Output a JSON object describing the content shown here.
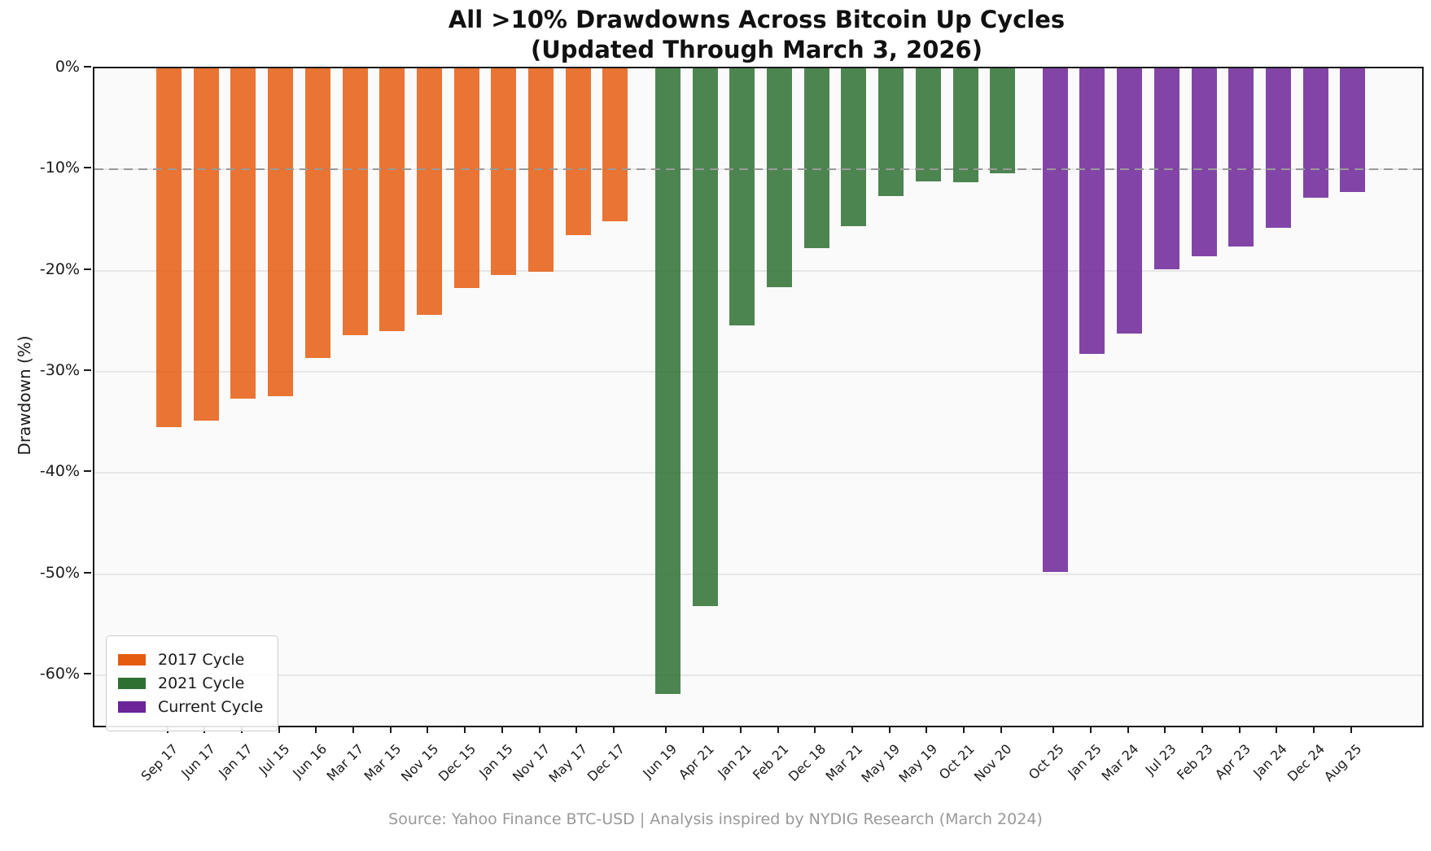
{
  "title": {
    "line1": "All >10% Drawdowns Across Bitcoin Up Cycles",
    "line2": "(Updated Through March 3, 2026)"
  },
  "source": "Source: Yahoo Finance BTC-USD | Analysis inspired by NYDIG Research (March 2024)",
  "chart_data": {
    "type": "bar",
    "title": "All >10% Drawdowns Across Bitcoin Up Cycles (Updated Through March 3, 2026)",
    "xlabel": "",
    "ylabel": "Drawdown (%)",
    "ylim": [
      -65,
      0
    ],
    "yticks": [
      "0%",
      "-10%",
      "-20%",
      "-30%",
      "-40%",
      "-50%",
      "-60%"
    ],
    "ytick_values": [
      0,
      -10,
      -20,
      -30,
      -40,
      -50,
      -60
    ],
    "grid": true,
    "reference_line": {
      "value": -10,
      "style": "dashed",
      "color": "#999999"
    },
    "legend_position": "lower left",
    "series": [
      {
        "name": "2017 Cycle",
        "color": "#E55C0F",
        "points": [
          {
            "label": "Sep 17",
            "value": -35.5
          },
          {
            "label": "Jun 17",
            "value": -34.8
          },
          {
            "label": "Jan 17",
            "value": -32.7
          },
          {
            "label": "Jul 15",
            "value": -32.4
          },
          {
            "label": "Jun 16",
            "value": -28.6
          },
          {
            "label": "Mar 17",
            "value": -26.4
          },
          {
            "label": "Mar 15",
            "value": -26.0
          },
          {
            "label": "Nov 15",
            "value": -24.4
          },
          {
            "label": "Dec 15",
            "value": -21.7
          },
          {
            "label": "Jan 15",
            "value": -20.4
          },
          {
            "label": "Nov 17",
            "value": -20.1
          },
          {
            "label": "May 17",
            "value": -16.5
          },
          {
            "label": "Dec 17",
            "value": -15.1
          }
        ]
      },
      {
        "name": "2021 Cycle",
        "color": "#2E7032",
        "points": [
          {
            "label": "Jun 19",
            "value": -61.9
          },
          {
            "label": "Apr 21",
            "value": -53.2
          },
          {
            "label": "Jan 21",
            "value": -25.4
          },
          {
            "label": "Feb 21",
            "value": -21.6
          },
          {
            "label": "Dec 18",
            "value": -17.8
          },
          {
            "label": "Mar 21",
            "value": -15.6
          },
          {
            "label": "May 19",
            "value": -12.6
          },
          {
            "label": "May 19",
            "value": -11.2
          },
          {
            "label": "Oct 21",
            "value": -11.3
          },
          {
            "label": "Nov 20",
            "value": -10.4
          }
        ]
      },
      {
        "name": "Current Cycle",
        "color": "#6C2498",
        "points": [
          {
            "label": "Oct 25",
            "value": -49.8
          },
          {
            "label": "Jan 25",
            "value": -28.2
          },
          {
            "label": "Mar 24",
            "value": -26.2
          },
          {
            "label": "Jul 23",
            "value": -19.9
          },
          {
            "label": "Feb 23",
            "value": -18.6
          },
          {
            "label": "Apr 23",
            "value": -17.6
          },
          {
            "label": "Jan 24",
            "value": -15.8
          },
          {
            "label": "Dec 24",
            "value": -12.8
          },
          {
            "label": "Aug 25",
            "value": -12.2
          }
        ]
      }
    ]
  }
}
